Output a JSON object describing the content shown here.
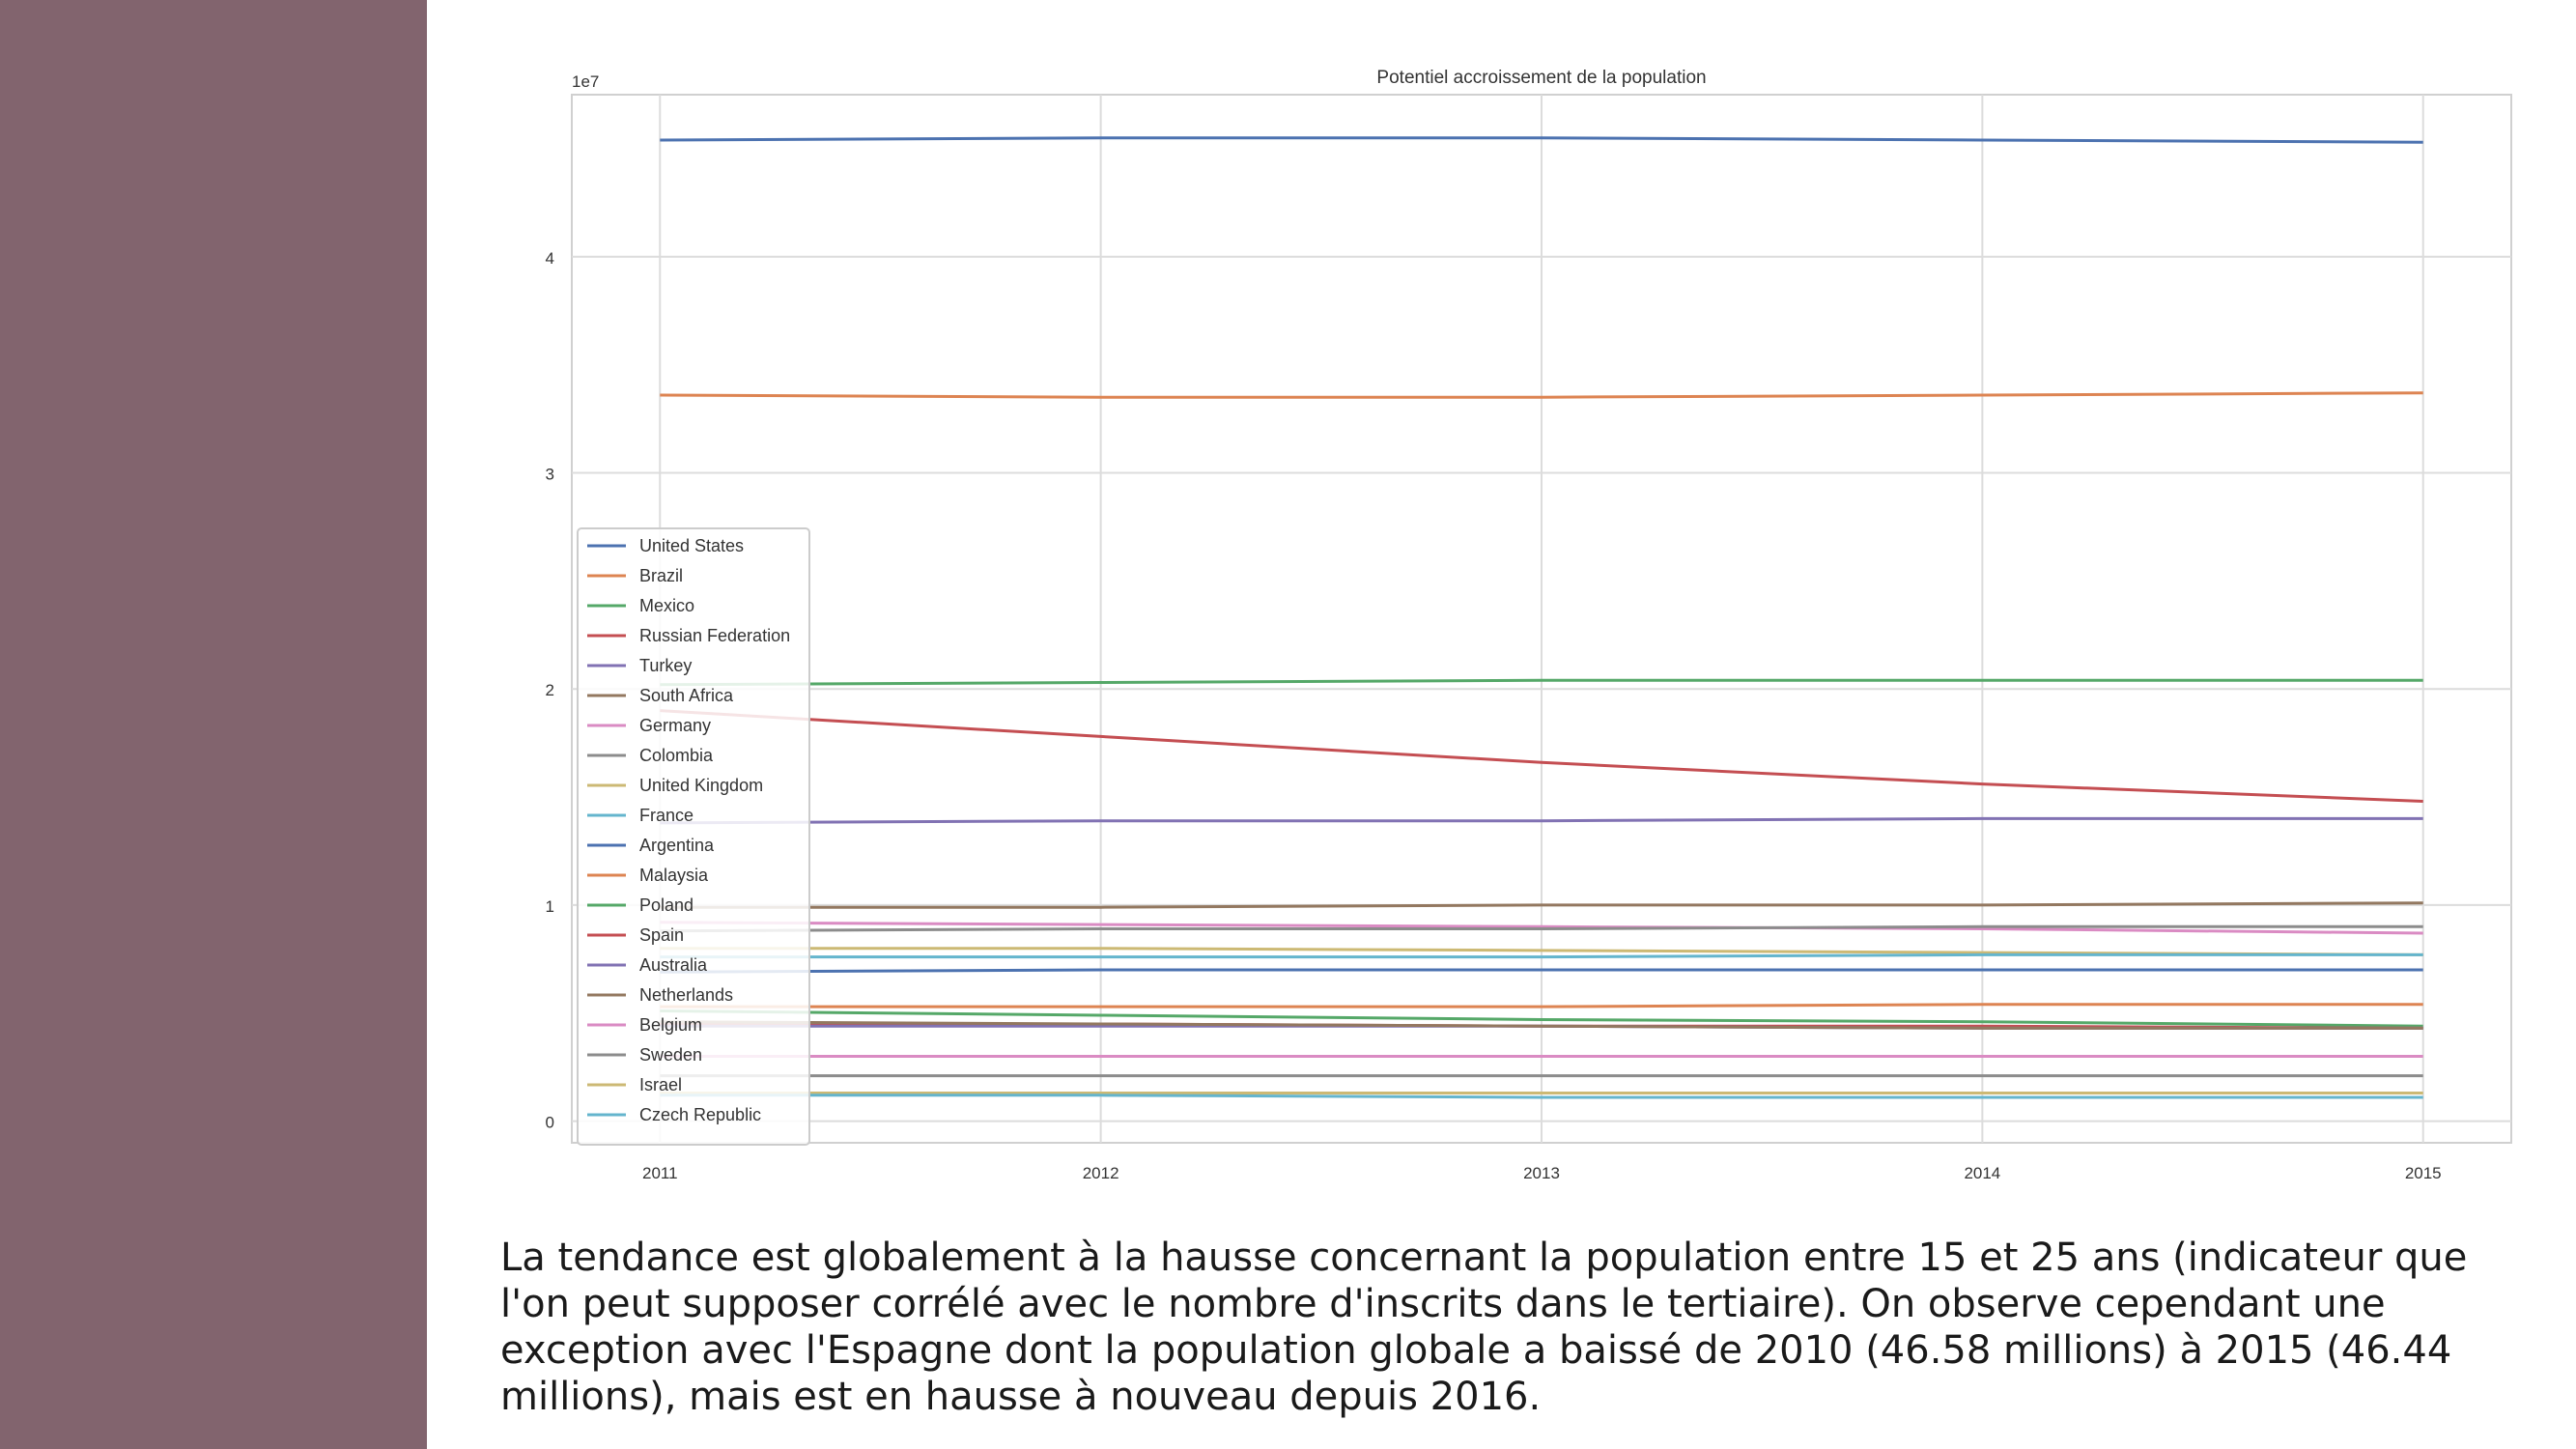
{
  "page": {
    "sidebar_color": "#82646e",
    "caption": "La tendance est globalement à la hausse concernant la population entre 15 et 25 ans (indicateur que l'on peut supposer corrélé avec le nombre d'inscrits dans le tertiaire). On observe cependant une exception avec l'Espagne dont la population globale a baissé de 2010 (46.58 millions) à 2015 (46.44 millions), mais est en hausse à nouveau depuis 2016."
  },
  "chart_data": {
    "type": "line",
    "title": "Potentiel accroissement de la population",
    "xlabel": "",
    "ylabel": "",
    "scale_label": "1e7",
    "x": [
      2011,
      2012,
      2013,
      2014,
      2015
    ],
    "xlim": [
      2010.8,
      2015.2
    ],
    "ylim": [
      -0.1,
      4.75
    ],
    "yticks": [
      0,
      1,
      2,
      3,
      4
    ],
    "grid": true,
    "legend_position": "lower-left",
    "series": [
      {
        "name": "United States",
        "color": "#4c72b0",
        "values": [
          4.54,
          4.55,
          4.55,
          4.54,
          4.53
        ]
      },
      {
        "name": "Brazil",
        "color": "#dd8452",
        "values": [
          3.36,
          3.35,
          3.35,
          3.36,
          3.37
        ]
      },
      {
        "name": "Mexico",
        "color": "#55a868",
        "values": [
          2.02,
          2.03,
          2.04,
          2.04,
          2.04
        ]
      },
      {
        "name": "Russian Federation",
        "color": "#c44e52",
        "values": [
          1.9,
          1.78,
          1.66,
          1.56,
          1.48
        ]
      },
      {
        "name": "Turkey",
        "color": "#8172b3",
        "values": [
          1.38,
          1.39,
          1.39,
          1.4,
          1.4
        ]
      },
      {
        "name": "South Africa",
        "color": "#937860",
        "values": [
          0.99,
          0.99,
          1.0,
          1.0,
          1.01
        ]
      },
      {
        "name": "Germany",
        "color": "#da8bc3",
        "values": [
          0.92,
          0.91,
          0.9,
          0.89,
          0.87
        ]
      },
      {
        "name": "Colombia",
        "color": "#8c8c8c",
        "values": [
          0.88,
          0.89,
          0.89,
          0.9,
          0.9
        ]
      },
      {
        "name": "United Kingdom",
        "color": "#ccb974",
        "values": [
          0.8,
          0.8,
          0.79,
          0.78,
          0.77
        ]
      },
      {
        "name": "France",
        "color": "#64b5cd",
        "values": [
          0.76,
          0.76,
          0.76,
          0.77,
          0.77
        ]
      },
      {
        "name": "Argentina",
        "color": "#4c72b0",
        "values": [
          0.69,
          0.7,
          0.7,
          0.7,
          0.7
        ]
      },
      {
        "name": "Malaysia",
        "color": "#dd8452",
        "values": [
          0.53,
          0.53,
          0.53,
          0.54,
          0.54
        ]
      },
      {
        "name": "Poland",
        "color": "#55a868",
        "values": [
          0.51,
          0.49,
          0.47,
          0.46,
          0.44
        ]
      },
      {
        "name": "Spain",
        "color": "#c44e52",
        "values": [
          0.45,
          0.45,
          0.44,
          0.44,
          0.43
        ]
      },
      {
        "name": "Australia",
        "color": "#8172b3",
        "values": [
          0.44,
          0.44,
          0.44,
          0.43,
          0.43
        ]
      },
      {
        "name": "Netherlands",
        "color": "#937860",
        "values": [
          0.46,
          0.45,
          0.44,
          0.43,
          0.43
        ]
      },
      {
        "name": "Belgium",
        "color": "#da8bc3",
        "values": [
          0.3,
          0.3,
          0.3,
          0.3,
          0.3
        ]
      },
      {
        "name": "Sweden",
        "color": "#8c8c8c",
        "values": [
          0.21,
          0.21,
          0.21,
          0.21,
          0.21
        ]
      },
      {
        "name": "Israel",
        "color": "#ccb974",
        "values": [
          0.13,
          0.13,
          0.13,
          0.13,
          0.13
        ]
      },
      {
        "name": "Czech Republic",
        "color": "#64b5cd",
        "values": [
          0.12,
          0.12,
          0.11,
          0.11,
          0.11
        ]
      }
    ]
  }
}
